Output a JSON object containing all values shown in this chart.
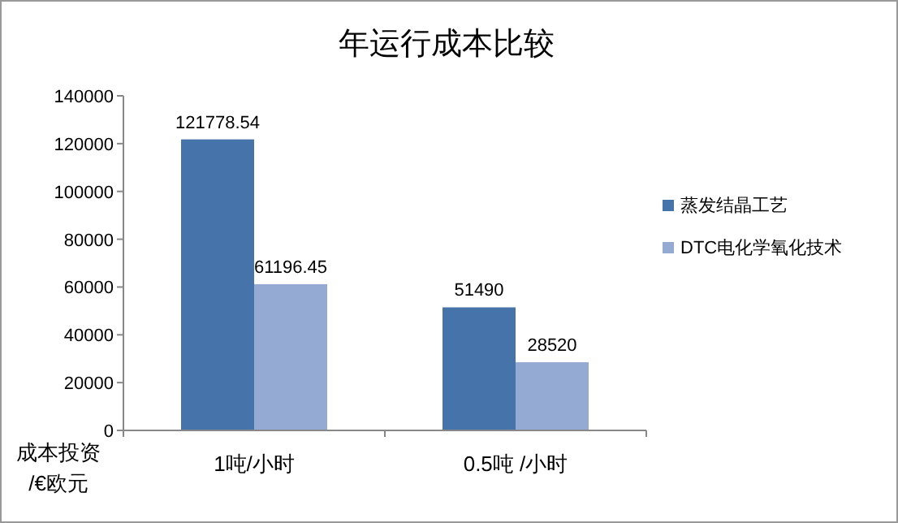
{
  "chart_data": {
    "type": "bar",
    "title": "年运行成本比较",
    "ylabel": "成本投资\n/€欧元",
    "categories": [
      "1吨/小时",
      "0.5吨 /小时"
    ],
    "series": [
      {
        "name": "蒸发结晶工艺",
        "color": "#4673aa",
        "values": [
          121778.54,
          51490
        ]
      },
      {
        "name": "DTC电化学氧化技术",
        "color": "#94aad3",
        "values": [
          61196.45,
          28520
        ]
      }
    ],
    "ylim": [
      0,
      140000
    ],
    "yticks": [
      0,
      20000,
      40000,
      60000,
      80000,
      100000,
      120000,
      140000
    ],
    "data_labels": true,
    "grid": false,
    "legend": "right"
  }
}
